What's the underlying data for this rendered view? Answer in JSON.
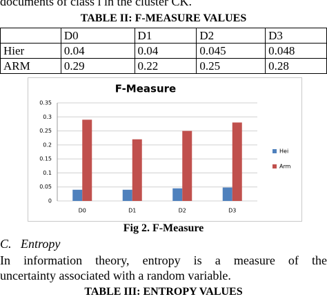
{
  "top_text": "documents of class i in the cluster CK.",
  "table2": {
    "title": "TABLE II: F-MEASURE VALUES",
    "header": [
      "",
      "D0",
      "D1",
      "D2",
      "D3"
    ],
    "rows": [
      [
        "Hier",
        "0.04",
        "0.04",
        "0.045",
        "0.048"
      ],
      [
        "ARM",
        "0.29",
        "0.22",
        "0.25",
        "0.28"
      ]
    ]
  },
  "chart_data": {
    "type": "bar",
    "title": "F-Measure",
    "categories": [
      "D0",
      "D1",
      "D2",
      "D3"
    ],
    "series": [
      {
        "name": "Hei",
        "color": "#4f81bd",
        "values": [
          0.04,
          0.04,
          0.045,
          0.048
        ]
      },
      {
        "name": "Arm",
        "color": "#c0504d",
        "values": [
          0.29,
          0.22,
          0.25,
          0.28
        ]
      }
    ],
    "ylim": [
      0,
      0.35
    ],
    "yticks": [
      0,
      0.05,
      0.1,
      0.15,
      0.2,
      0.25,
      0.3,
      0.35
    ],
    "grid": true,
    "legend": "right"
  },
  "figure_caption": "Fig 2. F-Measure",
  "section": {
    "label": "C.",
    "title": "Entropy"
  },
  "paragraph": [
    "In information theory, entropy is a measure of the",
    "uncertainty associated with a random variable."
  ],
  "table3_title": "TABLE III: ENTROPY VALUES"
}
